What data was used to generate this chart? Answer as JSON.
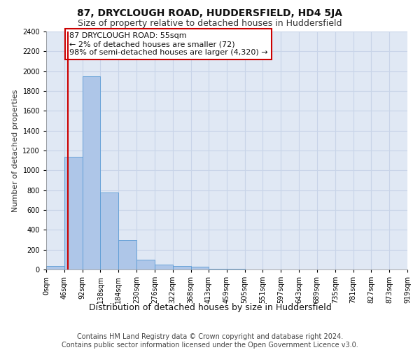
{
  "title": "87, DRYCLOUGH ROAD, HUDDERSFIELD, HD4 5JA",
  "subtitle": "Size of property relative to detached houses in Huddersfield",
  "xlabel": "Distribution of detached houses by size in Huddersfield",
  "ylabel": "Number of detached properties",
  "bin_edges": [
    0,
    46,
    92,
    138,
    184,
    230,
    276,
    322,
    368,
    413,
    459,
    505,
    551,
    597,
    643,
    689,
    735,
    781,
    827,
    873,
    919
  ],
  "bar_heights": [
    35,
    1140,
    1950,
    775,
    300,
    100,
    50,
    35,
    25,
    8,
    5,
    3,
    2,
    2,
    1,
    1,
    1,
    1,
    0,
    0
  ],
  "bar_color": "#aec6e8",
  "bar_edge_color": "#5b9bd5",
  "grid_color": "#c8d4e8",
  "property_size": 55,
  "property_line_color": "#cc0000",
  "annotation_text": "87 DRYCLOUGH ROAD: 55sqm\n← 2% of detached houses are smaller (72)\n98% of semi-detached houses are larger (4,320) →",
  "annotation_box_color": "#ffffff",
  "annotation_box_edge_color": "#cc0000",
  "ylim": [
    0,
    2400
  ],
  "yticks": [
    0,
    200,
    400,
    600,
    800,
    1000,
    1200,
    1400,
    1600,
    1800,
    2000,
    2200,
    2400
  ],
  "footer_text": "Contains HM Land Registry data © Crown copyright and database right 2024.\nContains public sector information licensed under the Open Government Licence v3.0.",
  "background_color": "#e0e8f4",
  "title_fontsize": 10,
  "subtitle_fontsize": 9,
  "xlabel_fontsize": 9,
  "ylabel_fontsize": 8,
  "tick_fontsize": 7,
  "annotation_fontsize": 8,
  "footer_fontsize": 7
}
